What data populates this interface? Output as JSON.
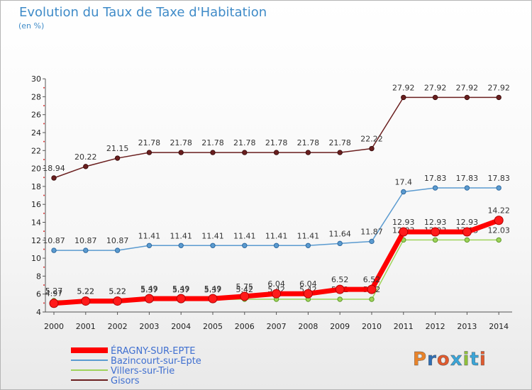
{
  "title": "Evolution du Taux de Taxe d'Habitation",
  "subtitle": "(en %)",
  "logo": {
    "text": "Proxiti",
    "letter_colors": [
      "#e8832a",
      "#2f6fb5",
      "#e05a2e",
      "#3aa5d8",
      "#8ebf3b",
      "#3aa5d8",
      "#e05a2e"
    ]
  },
  "chart_data": {
    "type": "line",
    "title": "Evolution du Taux de Taxe d'Habitation",
    "ylabel": "(en %)",
    "xlabel": "",
    "ylim": [
      4,
      30
    ],
    "y_ticks": [
      4,
      6,
      8,
      10,
      12,
      14,
      16,
      18,
      20,
      22,
      24,
      26,
      28,
      30
    ],
    "grid": false,
    "legend_position": "bottom-left",
    "categories": [
      "2000",
      "2001",
      "2002",
      "2003",
      "2004",
      "2005",
      "2006",
      "2007",
      "2008",
      "2009",
      "2010",
      "2011",
      "2012",
      "2013",
      "2014"
    ],
    "series": [
      {
        "name": "Gisors",
        "color": "#6b1f1f",
        "values": [
          18.94,
          20.22,
          21.15,
          21.78,
          21.78,
          21.78,
          21.78,
          21.78,
          21.78,
          21.78,
          22.22,
          27.92,
          27.92,
          27.92,
          27.92
        ]
      },
      {
        "name": "Bazincourt-sur-Epte",
        "color": "#5b9bd0",
        "values": [
          10.87,
          10.87,
          10.87,
          11.41,
          11.41,
          11.41,
          11.41,
          11.41,
          11.41,
          11.64,
          11.87,
          17.4,
          17.83,
          17.83,
          17.83
        ]
      },
      {
        "name": "Villers-sur-Trie",
        "color": "#9ed35a",
        "values": [
          5.27,
          5.22,
          5.22,
          5.37,
          5.37,
          5.37,
          5.42,
          5.42,
          5.42,
          5.42,
          5.42,
          12.03,
          12.03,
          12.03,
          12.03
        ]
      },
      {
        "name": "ÉRAGNY-SUR-EPTE",
        "color": "#ff0000",
        "values": [
          4.97,
          5.22,
          5.22,
          5.49,
          5.49,
          5.49,
          5.75,
          6.04,
          6.04,
          6.52,
          6.52,
          12.93,
          12.93,
          12.93,
          14.22
        ]
      }
    ],
    "legend": [
      "ÉRAGNY-SUR-EPTE",
      "Bazincourt-sur-Epte",
      "Villers-sur-Trie",
      "Gisors"
    ]
  }
}
